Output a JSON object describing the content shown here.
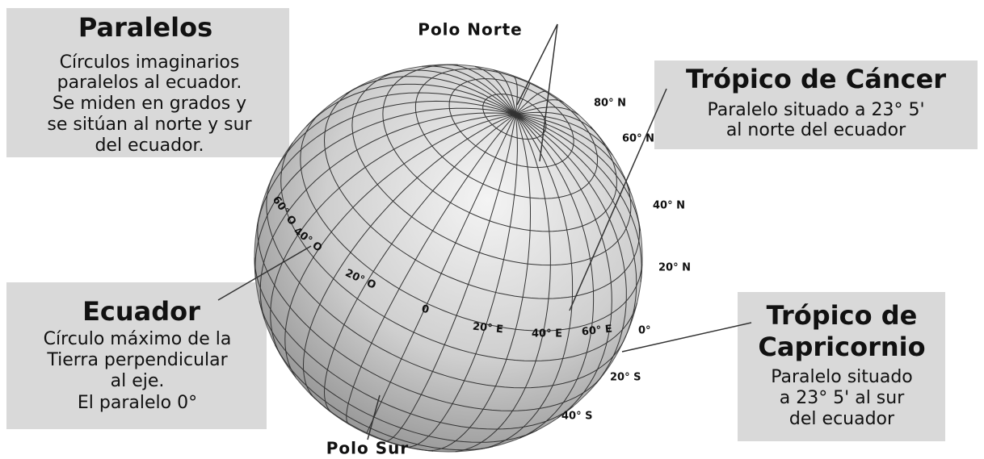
{
  "paralelos": {
    "title": "Paralelos",
    "lines": [
      "Círculos imaginarios",
      "paralelos al ecuador.",
      "Se miden en grados y",
      "se sitúan al norte y sur",
      "del ecuador."
    ]
  },
  "ecuador": {
    "title": "Ecuador",
    "lines": [
      "Círculo máximo de la",
      "Tierra perpendicular",
      "al eje.",
      "El paralelo 0°"
    ]
  },
  "cancer": {
    "title": "Trópico de Cáncer",
    "lines": [
      "Paralelo situado a 23° 5'",
      "al norte del ecuador"
    ]
  },
  "capricornio": {
    "title": [
      "Trópico de",
      "Capricornio"
    ],
    "lines": [
      "Paralelo situado",
      "a 23° 5' al sur",
      "del ecuador"
    ]
  },
  "poles": {
    "north": "Polo Norte",
    "south": "Polo Sur"
  },
  "latitudes": [
    "80° N",
    "60° N",
    "40° N",
    "20° N",
    "0°",
    "20° S",
    "40° S"
  ],
  "longitudes": [
    "60° O",
    "40° O",
    "20° O",
    "0",
    "20° E",
    "40° E",
    "60° E"
  ]
}
